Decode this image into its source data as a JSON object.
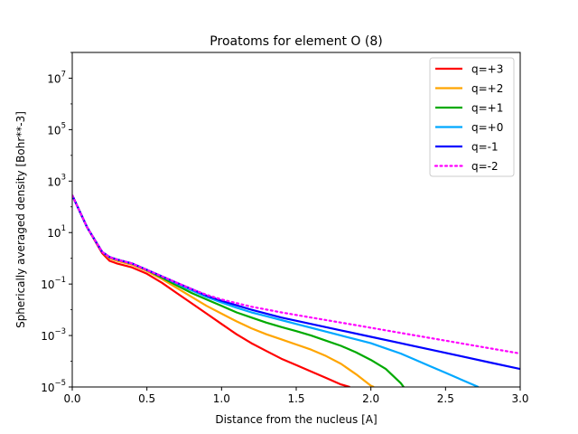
{
  "chart_data": {
    "type": "line",
    "title": "Proatoms for element O (8)",
    "xlabel": "Distance from the nucleus [A]",
    "ylabel": "Spherically averaged density [Bohr**-3]",
    "xlim": [
      0,
      3.0
    ],
    "ylim_log10": [
      -5,
      8
    ],
    "yscale": "log",
    "grid": false,
    "legend_position": "top-right",
    "x_ticks": [
      "0.0",
      "0.5",
      "1.0",
      "1.5",
      "2.0",
      "2.5",
      "3.0"
    ],
    "y_ticks": [
      {
        "base": "10",
        "exp": "−5",
        "value": -5
      },
      {
        "base": "10",
        "exp": "−3",
        "value": -3
      },
      {
        "base": "10",
        "exp": "−1",
        "value": -1
      },
      {
        "base": "10",
        "exp": "1",
        "value": 1
      },
      {
        "base": "10",
        "exp": "3",
        "value": 3
      },
      {
        "base": "10",
        "exp": "5",
        "value": 5
      },
      {
        "base": "10",
        "exp": "7",
        "value": 7
      }
    ],
    "series": [
      {
        "name": "q=+3",
        "color": "#ff0000",
        "style": "solid",
        "x": [
          0,
          0.1,
          0.2,
          0.25,
          0.3,
          0.4,
          0.5,
          0.6,
          0.7,
          0.8,
          0.9,
          1.0,
          1.1,
          1.2,
          1.3,
          1.4,
          1.5,
          1.6,
          1.7,
          1.8,
          1.86
        ],
        "log10_y": [
          2.45,
          1.2,
          0.2,
          -0.1,
          -0.2,
          -0.35,
          -0.6,
          -0.95,
          -1.35,
          -1.75,
          -2.15,
          -2.55,
          -2.95,
          -3.3,
          -3.6,
          -3.9,
          -4.15,
          -4.4,
          -4.65,
          -4.9,
          -5.0
        ]
      },
      {
        "name": "q=+2",
        "color": "#ffa500",
        "style": "solid",
        "x": [
          0,
          0.1,
          0.2,
          0.25,
          0.3,
          0.4,
          0.5,
          0.6,
          0.7,
          0.8,
          0.9,
          1.0,
          1.1,
          1.2,
          1.3,
          1.4,
          1.5,
          1.6,
          1.7,
          1.8,
          1.9,
          2.0,
          2.02
        ],
        "log10_y": [
          2.45,
          1.2,
          0.25,
          0.0,
          -0.1,
          -0.25,
          -0.5,
          -0.8,
          -1.15,
          -1.5,
          -1.85,
          -2.15,
          -2.45,
          -2.72,
          -2.95,
          -3.15,
          -3.35,
          -3.55,
          -3.8,
          -4.1,
          -4.5,
          -4.95,
          -5.0
        ]
      },
      {
        "name": "q=+1",
        "color": "#00aa00",
        "style": "solid",
        "x": [
          0,
          0.1,
          0.2,
          0.25,
          0.3,
          0.4,
          0.5,
          0.6,
          0.7,
          0.8,
          0.9,
          1.0,
          1.1,
          1.2,
          1.3,
          1.4,
          1.5,
          1.6,
          1.7,
          1.8,
          1.9,
          2.0,
          2.1,
          2.2,
          2.22
        ],
        "log10_y": [
          2.45,
          1.2,
          0.25,
          0.05,
          -0.05,
          -0.2,
          -0.45,
          -0.75,
          -1.05,
          -1.35,
          -1.6,
          -1.85,
          -2.1,
          -2.3,
          -2.5,
          -2.67,
          -2.83,
          -3.0,
          -3.2,
          -3.4,
          -3.65,
          -3.95,
          -4.3,
          -4.85,
          -5.0
        ]
      },
      {
        "name": "q=+0",
        "color": "#00a8ff",
        "style": "solid",
        "x": [
          0,
          0.1,
          0.2,
          0.25,
          0.3,
          0.4,
          0.5,
          0.6,
          0.7,
          0.8,
          0.9,
          1.0,
          1.1,
          1.2,
          1.3,
          1.4,
          1.5,
          1.6,
          1.7,
          1.8,
          1.9,
          2.0,
          2.1,
          2.2,
          2.3,
          2.4,
          2.5,
          2.6,
          2.72
        ],
        "log10_y": [
          2.45,
          1.2,
          0.25,
          0.05,
          -0.05,
          -0.2,
          -0.45,
          -0.7,
          -0.98,
          -1.25,
          -1.5,
          -1.72,
          -1.92,
          -2.1,
          -2.25,
          -2.4,
          -2.55,
          -2.7,
          -2.85,
          -3.0,
          -3.15,
          -3.3,
          -3.5,
          -3.7,
          -3.95,
          -4.2,
          -4.45,
          -4.7,
          -5.0
        ]
      },
      {
        "name": "q=-1",
        "color": "#0000ff",
        "style": "solid",
        "x": [
          0,
          0.1,
          0.2,
          0.25,
          0.3,
          0.4,
          0.5,
          0.6,
          0.7,
          0.8,
          0.9,
          1.0,
          1.2,
          1.4,
          1.6,
          1.8,
          2.0,
          2.2,
          2.4,
          2.6,
          2.8,
          3.0
        ],
        "log10_y": [
          2.45,
          1.2,
          0.25,
          0.05,
          -0.05,
          -0.2,
          -0.45,
          -0.7,
          -0.95,
          -1.2,
          -1.45,
          -1.65,
          -2.0,
          -2.3,
          -2.55,
          -2.8,
          -3.05,
          -3.3,
          -3.55,
          -3.8,
          -4.05,
          -4.3
        ]
      },
      {
        "name": "q=-2",
        "color": "#ff00ff",
        "style": "dotted",
        "x": [
          0,
          0.1,
          0.2,
          0.25,
          0.3,
          0.4,
          0.5,
          0.6,
          0.7,
          0.8,
          0.9,
          1.0,
          1.2,
          1.4,
          1.6,
          1.8,
          2.0,
          2.2,
          2.4,
          2.6,
          2.8,
          3.0
        ],
        "log10_y": [
          2.45,
          1.2,
          0.25,
          0.05,
          -0.05,
          -0.2,
          -0.45,
          -0.7,
          -0.95,
          -1.2,
          -1.42,
          -1.6,
          -1.88,
          -2.1,
          -2.3,
          -2.5,
          -2.7,
          -2.9,
          -3.1,
          -3.3,
          -3.5,
          -3.7
        ]
      }
    ]
  }
}
